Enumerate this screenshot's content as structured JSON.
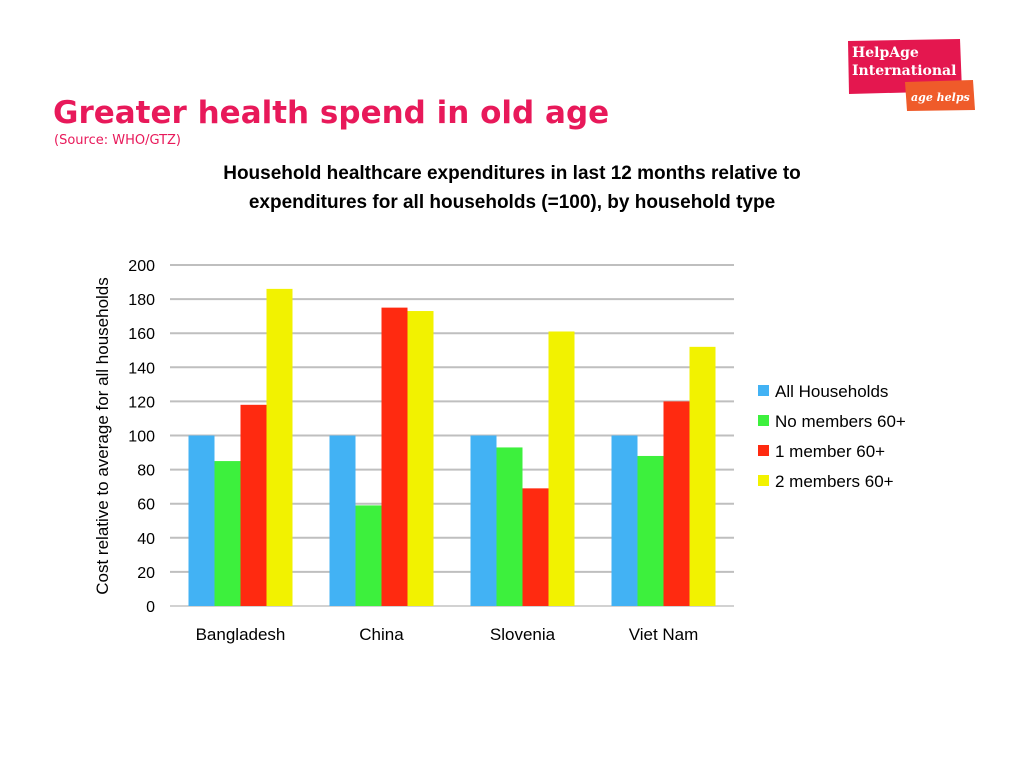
{
  "logo": {
    "line1": "HelpAge",
    "line2": "International",
    "tagline": "age helps",
    "colors": {
      "primary": "#e4174f",
      "accent": "#ef5b2a"
    }
  },
  "slide": {
    "title": "Greater health spend in old age",
    "source": "(Source: WHO/GTZ)",
    "title_color": "#e8195a"
  },
  "chart_data": {
    "type": "bar",
    "title_lines": [
      "Household healthcare expenditures in last 12 months relative to",
      "expenditures for all households (=100), by household type"
    ],
    "xlabel": "",
    "ylabel": "Cost relative to average for all households",
    "ylim": [
      0,
      200
    ],
    "yticks": [
      0,
      20,
      40,
      60,
      80,
      100,
      120,
      140,
      160,
      180,
      200
    ],
    "grid": true,
    "legend_position": "right",
    "categories": [
      "Bangladesh",
      "China",
      "Slovenia",
      "Viet Nam"
    ],
    "series": [
      {
        "name": "All Households",
        "color": "#42b2f4",
        "values": [
          100,
          100,
          100,
          100
        ]
      },
      {
        "name": "No members 60+",
        "color": "#3df03d",
        "values": [
          85,
          59,
          93,
          88
        ]
      },
      {
        "name": "1 member 60+",
        "color": "#ff2a10",
        "values": [
          118,
          175,
          69,
          120
        ]
      },
      {
        "name": "2 members 60+",
        "color": "#f2f200",
        "values": [
          186,
          173,
          161,
          152
        ]
      }
    ]
  }
}
